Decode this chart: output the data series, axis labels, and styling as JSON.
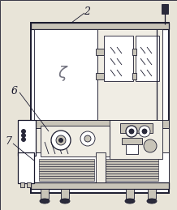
{
  "bg_color": "#e8e4d8",
  "line_color": "#1a1a2e",
  "figsize": [
    2.18,
    2.59
  ],
  "dpi": 100,
  "lw_thin": 0.6,
  "lw_med": 0.9,
  "lw_thick": 1.4,
  "white": "#ffffff",
  "light_gray": "#f0ede4",
  "mid_gray": "#c8c4b8",
  "dark_fill": "#2a2a3a",
  "label_fs": 9
}
